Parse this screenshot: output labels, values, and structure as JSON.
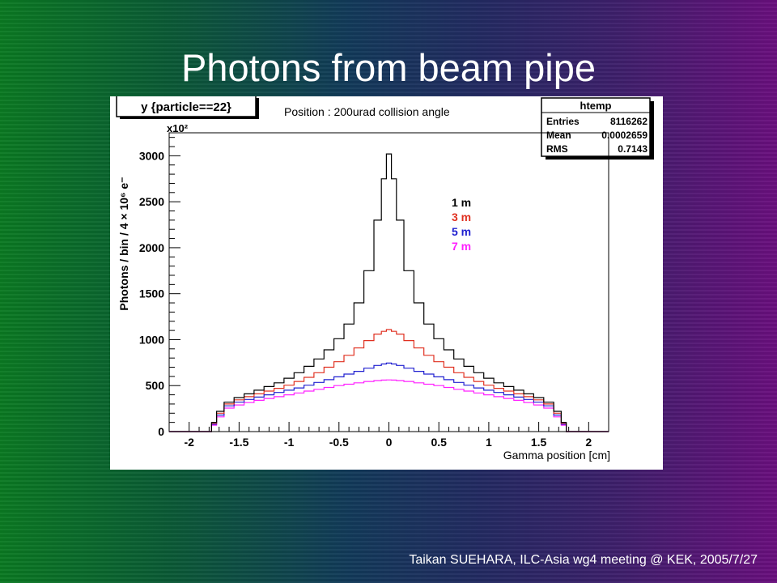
{
  "slide": {
    "title": "Photons from beam pipe",
    "footer": "Taikan  SUEHARA, ILC-Asia wg4 meeting @ KEK, 2005/7/27"
  },
  "chart_data": {
    "type": "line",
    "draw_option": "y  {particle==22}",
    "title": "Position : 200urad collision angle",
    "xlabel": "Gamma position [cm]",
    "ylabel": "Photons / bin / 4 × 10⁶ e⁻",
    "y_multiplier": "x10²",
    "xlim": [
      -2.2,
      2.2
    ],
    "ylim": [
      0,
      3250
    ],
    "x_ticks": [
      "-2",
      "-1.5",
      "-1",
      "-0.5",
      "0",
      "0.5",
      "1",
      "1.5",
      "2"
    ],
    "y_ticks": [
      "0",
      "500",
      "1000",
      "1500",
      "2000",
      "2500",
      "3000"
    ],
    "grid": false,
    "legend_position": "top-center",
    "stats_box": {
      "title": "htemp",
      "rows": [
        {
          "label": "Entries",
          "value": "8116262"
        },
        {
          "label": "Mean",
          "value": "0.0002659"
        },
        {
          "label": "RMS",
          "value": "0.7143"
        }
      ]
    },
    "x": [
      -2.2,
      -1.9,
      -1.8,
      -1.75,
      -1.7,
      -1.6,
      -1.5,
      -1.4,
      -1.3,
      -1.2,
      -1.1,
      -1.0,
      -0.9,
      -0.8,
      -0.7,
      -0.6,
      -0.5,
      -0.4,
      -0.3,
      -0.2,
      -0.1,
      -0.05,
      0,
      0.05,
      0.1,
      0.2,
      0.3,
      0.4,
      0.5,
      0.6,
      0.7,
      0.8,
      0.9,
      1.0,
      1.1,
      1.2,
      1.3,
      1.4,
      1.5,
      1.6,
      1.7,
      1.75,
      1.8,
      1.9,
      2.2
    ],
    "series": [
      {
        "name": "1 m",
        "color": "#000000",
        "values": [
          0,
          0,
          0,
          100,
          220,
          320,
          370,
          410,
          450,
          490,
          530,
          580,
          640,
          710,
          790,
          890,
          1010,
          1170,
          1400,
          1750,
          2300,
          2750,
          3020,
          2750,
          2300,
          1750,
          1400,
          1170,
          1010,
          890,
          790,
          710,
          640,
          580,
          530,
          490,
          450,
          410,
          370,
          320,
          220,
          100,
          0,
          0,
          0
        ]
      },
      {
        "name": "3 m",
        "color": "#e03020",
        "values": [
          0,
          0,
          0,
          90,
          200,
          300,
          345,
          380,
          410,
          440,
          470,
          505,
          545,
          590,
          640,
          700,
          760,
          830,
          910,
          990,
          1060,
          1090,
          1110,
          1090,
          1060,
          990,
          910,
          830,
          760,
          700,
          640,
          590,
          545,
          505,
          470,
          440,
          410,
          380,
          345,
          300,
          200,
          90,
          0,
          0,
          0
        ]
      },
      {
        "name": "5 m",
        "color": "#2020d0",
        "values": [
          0,
          0,
          0,
          80,
          180,
          280,
          320,
          350,
          375,
          400,
          425,
          450,
          475,
          505,
          535,
          565,
          595,
          625,
          655,
          690,
          720,
          735,
          745,
          735,
          720,
          690,
          655,
          625,
          595,
          565,
          535,
          505,
          475,
          450,
          425,
          400,
          375,
          350,
          320,
          280,
          180,
          80,
          0,
          0,
          0
        ]
      },
      {
        "name": "7 m",
        "color": "#ff20ff",
        "values": [
          0,
          0,
          0,
          70,
          160,
          255,
          290,
          315,
          340,
          360,
          380,
          400,
          420,
          440,
          460,
          480,
          500,
          515,
          530,
          545,
          555,
          560,
          562,
          560,
          555,
          545,
          530,
          515,
          500,
          480,
          460,
          440,
          420,
          400,
          380,
          360,
          340,
          315,
          290,
          255,
          160,
          70,
          0,
          0,
          0
        ]
      }
    ]
  }
}
